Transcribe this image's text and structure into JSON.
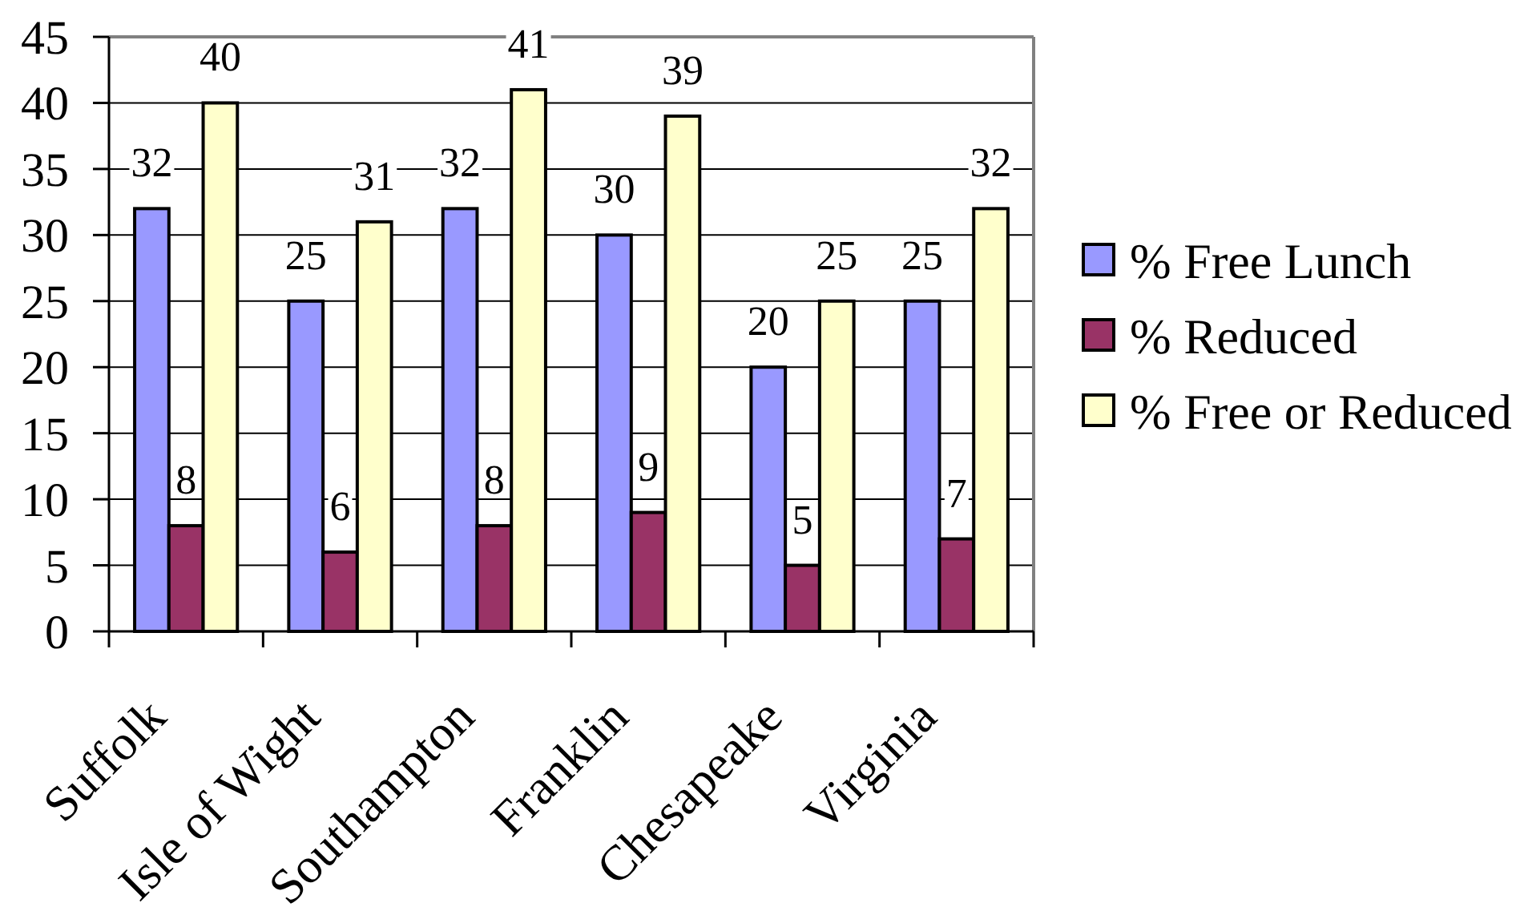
{
  "chart_data": {
    "type": "bar",
    "categories": [
      "Suffolk",
      "Isle of Wight",
      "Southampton",
      "Franklin",
      "Chesapeake",
      "Virginia"
    ],
    "series": [
      {
        "name": "% Free Lunch",
        "color": "#9999ff",
        "values": [
          32,
          25,
          32,
          30,
          20,
          25
        ]
      },
      {
        "name": "% Reduced",
        "color": "#993366",
        "values": [
          8,
          6,
          8,
          9,
          5,
          7
        ]
      },
      {
        "name": "% Free or Reduced",
        "color": "#ffffcc",
        "values": [
          40,
          31,
          41,
          39,
          25,
          32
        ]
      }
    ],
    "ylim": [
      0,
      45
    ],
    "yticks": [
      0,
      5,
      10,
      15,
      20,
      25,
      30,
      35,
      40,
      45
    ],
    "grid": "y",
    "legend": "right",
    "data_labels": true
  }
}
